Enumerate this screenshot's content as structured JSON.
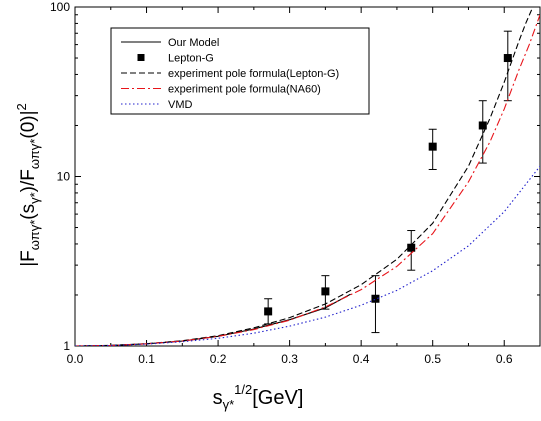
{
  "chart_data": {
    "type": "line",
    "x_axis": {
      "label_main": "s",
      "label_sub": "γ*",
      "label_sup": "1/2",
      "label_unit": "[GeV]",
      "xlim": [
        0.0,
        0.65
      ],
      "ticks": [
        0.0,
        0.1,
        0.2,
        0.3,
        0.4,
        0.5,
        0.6
      ],
      "tick_labels": [
        "0.0",
        "0.1",
        "0.2",
        "0.3",
        "0.4",
        "0.5",
        "0.6"
      ]
    },
    "y_axis": {
      "scale": "log",
      "ylim": [
        1,
        100
      ],
      "ticks": [
        1,
        10,
        100
      ],
      "tick_labels": [
        "1",
        "10",
        "100"
      ],
      "label_parts": [
        {
          "t": "|F",
          "s": "base"
        },
        {
          "t": "ωπγ*",
          "s": "sub"
        },
        {
          "t": "(s",
          "s": "base"
        },
        {
          "t": "γ*",
          "s": "sub"
        },
        {
          "t": ")/F",
          "s": "base"
        },
        {
          "t": "ωπγ*",
          "s": "sub"
        },
        {
          "t": "(0)|",
          "s": "base"
        },
        {
          "t": "2",
          "s": "sup"
        }
      ]
    },
    "legend": {
      "placement": "top-left",
      "entries": [
        {
          "label": "Our  Model",
          "series": "our_model"
        },
        {
          "label": "Lepton-G",
          "series": "lepton_g"
        },
        {
          "label": "experiment pole formula(Lepton-G)",
          "series": "pole_lepton_g"
        },
        {
          "label": "experiment pole formula(NA60)",
          "series": "pole_na60"
        },
        {
          "label": "VMD",
          "series": "vmd"
        }
      ]
    },
    "series": [
      {
        "id": "our_model",
        "style": "solid",
        "color": "#000000",
        "x": [
          0.0,
          0.05,
          0.1,
          0.15,
          0.2,
          0.25,
          0.3,
          0.35,
          0.385
        ],
        "y": [
          1.0,
          1.008,
          1.03,
          1.07,
          1.14,
          1.26,
          1.43,
          1.68,
          2.02
        ]
      },
      {
        "id": "lepton_g",
        "style": "markers",
        "marker": "square",
        "color": "#000000",
        "points": [
          {
            "x": 0.27,
            "y": 1.6,
            "ylo": 1.35,
            "yhi": 1.9
          },
          {
            "x": 0.35,
            "y": 2.1,
            "ylo": 1.65,
            "yhi": 2.6
          },
          {
            "x": 0.42,
            "y": 1.9,
            "ylo": 1.2,
            "yhi": 2.6
          },
          {
            "x": 0.47,
            "y": 3.8,
            "ylo": 2.8,
            "yhi": 4.8
          },
          {
            "x": 0.5,
            "y": 15,
            "ylo": 11,
            "yhi": 19
          },
          {
            "x": 0.57,
            "y": 20,
            "ylo": 12,
            "yhi": 28
          },
          {
            "x": 0.605,
            "y": 50,
            "ylo": 28,
            "yhi": 72
          }
        ]
      },
      {
        "id": "pole_lepton_g",
        "style": "dash",
        "color": "#000000",
        "x": [
          0.0,
          0.05,
          0.1,
          0.15,
          0.2,
          0.25,
          0.3,
          0.35,
          0.4,
          0.45,
          0.5,
          0.55,
          0.58,
          0.6,
          0.62,
          0.63,
          0.64
        ],
        "y": [
          1.0,
          1.008,
          1.032,
          1.075,
          1.15,
          1.28,
          1.47,
          1.77,
          2.3,
          3.25,
          5.3,
          11.5,
          22,
          36,
          62,
          80,
          100
        ]
      },
      {
        "id": "pole_na60",
        "style": "dashdot",
        "color": "#e8141a",
        "x": [
          0.0,
          0.05,
          0.1,
          0.15,
          0.2,
          0.25,
          0.3,
          0.35,
          0.4,
          0.45,
          0.5,
          0.55,
          0.58,
          0.6,
          0.62,
          0.635,
          0.65
        ],
        "y": [
          1.0,
          1.007,
          1.03,
          1.07,
          1.14,
          1.25,
          1.42,
          1.7,
          2.15,
          2.95,
          4.6,
          9.3,
          16,
          25,
          42,
          60,
          90
        ]
      },
      {
        "id": "vmd",
        "style": "dot",
        "color": "#2020cc",
        "x": [
          0.0,
          0.05,
          0.1,
          0.15,
          0.2,
          0.25,
          0.3,
          0.35,
          0.4,
          0.45,
          0.5,
          0.55,
          0.6,
          0.65
        ],
        "y": [
          1.0,
          1.006,
          1.026,
          1.06,
          1.11,
          1.19,
          1.31,
          1.48,
          1.74,
          2.13,
          2.78,
          3.9,
          6.2,
          11.5
        ]
      }
    ]
  }
}
